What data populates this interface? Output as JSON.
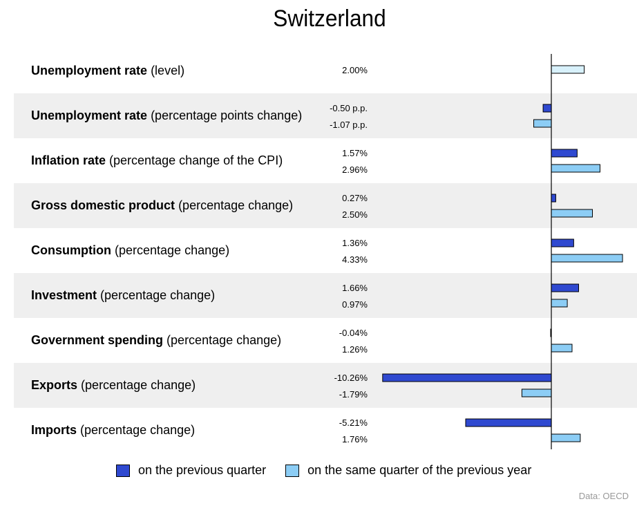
{
  "title": "Switzerland",
  "source": "Data: OECD",
  "legend": [
    {
      "label": "on the previous quarter",
      "color": "#2f49d0"
    },
    {
      "label": "on the same quarter of the previous year",
      "color": "#8ccdf5"
    }
  ],
  "chart_data": {
    "type": "bar",
    "orientation": "horizontal",
    "title": "Switzerland",
    "categories": [
      {
        "name": "Unemployment rate",
        "qualifier": "(level)"
      },
      {
        "name": "Unemployment rate",
        "qualifier": "(percentage points change)"
      },
      {
        "name": "Inflation rate",
        "qualifier": "(percentage change of the CPI)"
      },
      {
        "name": "Gross domestic product",
        "qualifier": "(percentage change)"
      },
      {
        "name": "Consumption",
        "qualifier": "(percentage change)"
      },
      {
        "name": "Investment",
        "qualifier": "(percentage change)"
      },
      {
        "name": "Government spending",
        "qualifier": "(percentage change)"
      },
      {
        "name": "Exports",
        "qualifier": "(percentage change)"
      },
      {
        "name": "Imports",
        "qualifier": "(percentage change)"
      }
    ],
    "series": [
      {
        "name": "on the previous quarter",
        "color": "#2f49d0",
        "values": [
          null,
          -0.5,
          1.57,
          0.27,
          1.36,
          1.66,
          -0.04,
          -10.26,
          -5.21
        ],
        "labels": [
          null,
          "-0.50 p.p.",
          "1.57%",
          "0.27%",
          "1.36%",
          "1.66%",
          "-0.04%",
          "-10.26%",
          "-5.21%"
        ]
      },
      {
        "name": "on the same quarter of the previous year",
        "color": "#8ccdf5",
        "values": [
          2.0,
          -1.07,
          2.96,
          2.5,
          4.33,
          0.97,
          1.26,
          -1.79,
          1.76
        ],
        "labels": [
          "2.00%",
          "-1.07 p.p.",
          "2.96%",
          "2.50%",
          "4.33%",
          "0.97%",
          "1.26%",
          "-1.79%",
          "1.76%"
        ]
      }
    ],
    "single_series_color": "#d8f1fb"
  }
}
